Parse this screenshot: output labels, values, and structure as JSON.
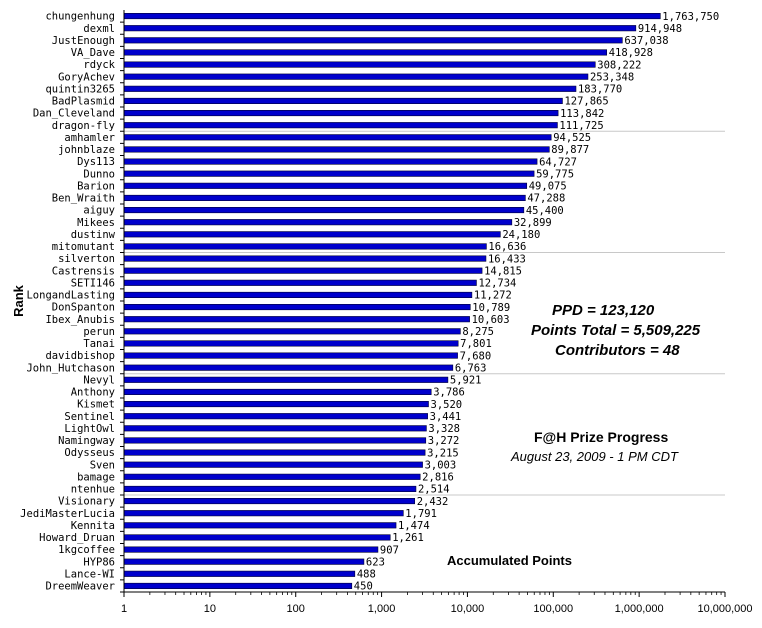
{
  "chart_data": {
    "type": "bar",
    "orientation": "horizontal",
    "x_scale": "log",
    "xlim": [
      1,
      10000000
    ],
    "ylabel": "Rank",
    "xlabel": "Accumulated Points",
    "title": "F@H Prize Progress",
    "subtitle": "August  23, 2009 - 1 PM CDT",
    "stats": [
      "PPD = 123,120",
      "Points Total = 5,509,225",
      "Contributors = 48"
    ],
    "x_ticks": [
      "1",
      "10",
      "100",
      "1,000",
      "10,000",
      "100,000",
      "1,000,000",
      "10,000,000"
    ],
    "x_tick_values": [
      1,
      10,
      100,
      1000,
      10000,
      100000,
      1000000,
      10000000
    ],
    "bar_color": "#0000cc",
    "categories": [
      "chungenhung",
      "dexml",
      "JustEnough",
      "VA_Dave",
      "rdyck",
      "GoryAchev",
      "quintin3265",
      "BadPlasmid",
      "Dan_Cleveland",
      "dragon-fly",
      "amhamler",
      "johnblaze",
      "Dys113",
      "Dunno",
      "Barion",
      "Ben_Wraith",
      "aiguy",
      "Mikees",
      "dustinw",
      "mitomutant",
      "silverton",
      "Castrensis",
      "SETI146",
      "LongandLasting",
      "DonSpanton",
      "Ibex_Anubis",
      "perun",
      "Tanai",
      "davidbishop",
      "John_Hutchason",
      "Nevyl",
      "Anthony",
      "Kismet",
      "Sentinel",
      "LightOwl",
      "Namingway",
      "Odysseus",
      "Sven",
      "bamage",
      "ntenhue",
      "Visionary",
      "JediMasterLucia",
      "Kennita",
      "Howard_Druan",
      "1kgcoffee",
      "HYP86",
      "Lance-WI",
      "DreemWeaver"
    ],
    "values": [
      1763750,
      914948,
      637038,
      418928,
      308222,
      253348,
      183770,
      127865,
      113842,
      111725,
      94525,
      89877,
      64727,
      59775,
      49075,
      47288,
      45400,
      32899,
      24180,
      16636,
      16433,
      14815,
      12734,
      11272,
      10789,
      10603,
      8275,
      7801,
      7680,
      6763,
      5921,
      3786,
      3520,
      3441,
      3328,
      3272,
      3215,
      3003,
      2816,
      2514,
      2432,
      1791,
      1474,
      1261,
      907,
      623,
      488,
      450
    ],
    "value_labels": [
      "1,763,750",
      "914,948",
      "637,038",
      "418,928",
      "308,222",
      "253,348",
      "183,770",
      "127,865",
      "113,842",
      "111,725",
      "94,525",
      "89,877",
      "64,727",
      "59,775",
      "49,075",
      "47,288",
      "45,400",
      "32,899",
      "24,180",
      "16,636",
      "16,433",
      "14,815",
      "12,734",
      "11,272",
      "10,789",
      "10,603",
      "8,275",
      "7,801",
      "7,680",
      "6,763",
      "5,921",
      "3,786",
      "3,520",
      "3,441",
      "3,328",
      "3,272",
      "3,215",
      "3,003",
      "2,816",
      "2,514",
      "2,432",
      "1,791",
      "1,474",
      "1,261",
      "907",
      "623",
      "488",
      "450"
    ],
    "grid": false,
    "legend": "none"
  }
}
